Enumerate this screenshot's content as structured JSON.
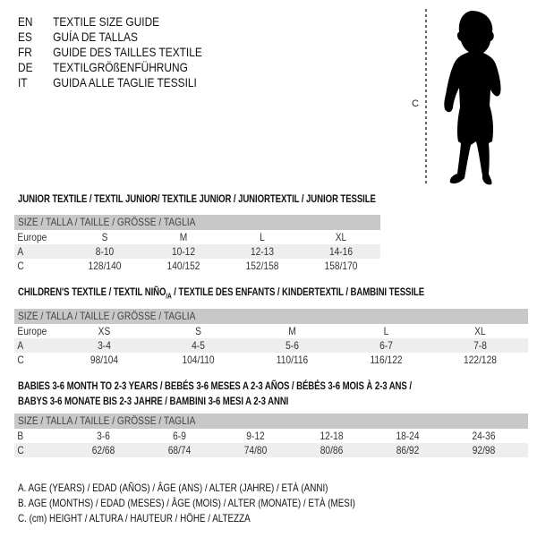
{
  "languages": [
    {
      "code": "EN",
      "title": "TEXTILE SIZE GUIDE"
    },
    {
      "code": "ES",
      "title": "GUÍA DE TALLAS"
    },
    {
      "code": "FR",
      "title": "GUIDE DES TAILLES TEXTILE"
    },
    {
      "code": "DE",
      "title": "TEXTILGRÖßENFÜHRUNG"
    },
    {
      "code": "IT",
      "title": "GUIDA ALLE TAGLIE TESSILI"
    }
  ],
  "figure": {
    "height_label": "C",
    "icon": "baby-silhouette"
  },
  "size_header": "SIZE / TALLA / TAILLE / GRÖSSE / TAGLIA",
  "colors": {
    "header_bg": "#c8c8c8",
    "row_shade": "#eeeeee"
  },
  "junior": {
    "title": "JUNIOR TEXTILE / TEXTIL JUNIOR/ TEXTILE JUNIOR / JUNIORTEXTIL / JUNIOR TESSILE",
    "rows": [
      {
        "label": "Europe",
        "values": [
          "S",
          "M",
          "L",
          "XL"
        ]
      },
      {
        "label": "A",
        "values": [
          "8-10",
          "10-12",
          "12-13",
          "14-16"
        ]
      },
      {
        "label": "C",
        "values": [
          "128/140",
          "140/152",
          "152/158",
          "158/170"
        ]
      }
    ]
  },
  "children": {
    "title": "CHILDREN'S TEXTILE / TEXTIL NIÑO",
    "title_sub": "/A",
    "title_rest": " / TEXTILE DES ENFANTS / KINDERTEXTIL / BAMBINI TESSILE",
    "rows": [
      {
        "label": "Europe",
        "values": [
          "XS",
          "S",
          "M",
          "L",
          "XL"
        ]
      },
      {
        "label": "A",
        "values": [
          "3-4",
          "4-5",
          "5-6",
          "6-7",
          "7-8"
        ]
      },
      {
        "label": "C",
        "values": [
          "98/104",
          "104/110",
          "110/116",
          "116/122",
          "122/128"
        ]
      }
    ]
  },
  "babies": {
    "title_line1": "BABIES 3-6 MONTH TO 2-3 YEARS / BEBÉS 3-6 MESES A 2-3 AÑOS / BÉBÉS 3-6 MOIS À 2-3 ANS /",
    "title_line2": "BABYS 3-6 MONATE BIS 2-3 JAHRE / BAMBINI 3-6 MESI A 2-3 ANNI",
    "rows": [
      {
        "label": "B",
        "values": [
          "3-6",
          "6-9",
          "9-12",
          "12-18",
          "18-24",
          "24-36"
        ]
      },
      {
        "label": "C",
        "values": [
          "62/68",
          "68/74",
          "74/80",
          "80/86",
          "86/92",
          "92/98"
        ]
      }
    ]
  },
  "legend": [
    "A. AGE (YEARS) / EDAD (AÑOS) / ÂGE (ANS) / ALTER (JAHRE) / ETÀ (ANNI)",
    "B. AGE (MONTHS) / EDAD (MESES) / ÂGE (MOIS) / ALTER (MONATE) / ETÀ (MESI)",
    "C. (cm) HEIGHT / ALTURA / HAUTEUR / HÖHE / ALTEZZA"
  ]
}
